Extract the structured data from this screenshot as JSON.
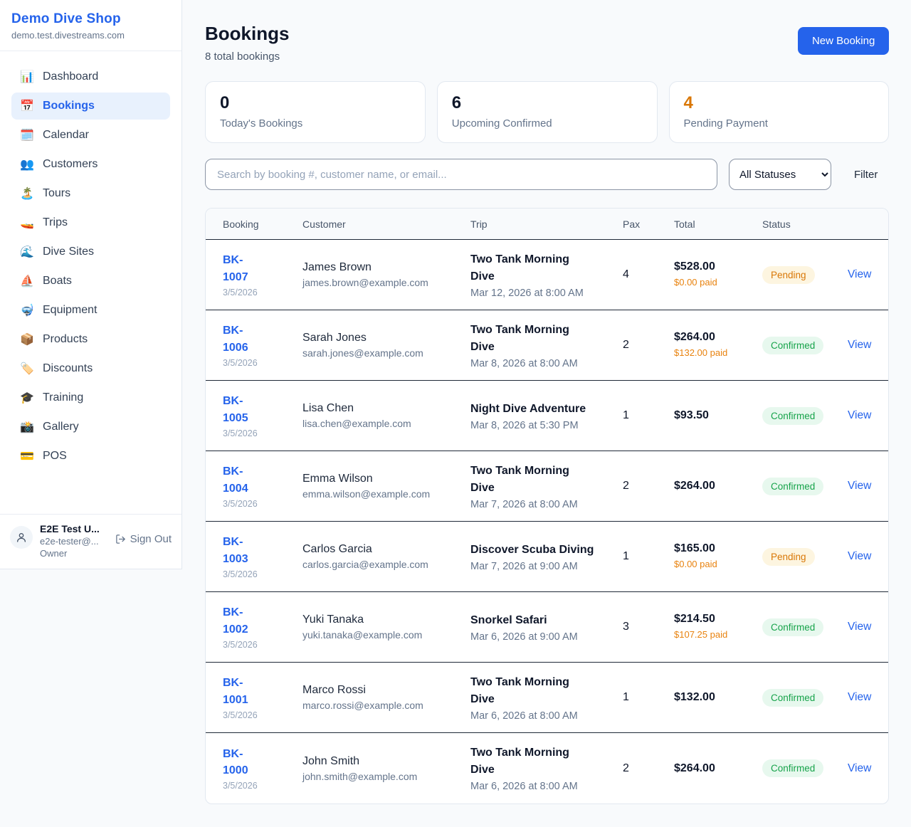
{
  "sidebar": {
    "title": "Demo Dive Shop",
    "domain": "demo.test.divestreams.com",
    "items": [
      {
        "slug": "dashboard",
        "icon": "📊",
        "label": "Dashboard",
        "active": false
      },
      {
        "slug": "bookings",
        "icon": "📅",
        "label": "Bookings",
        "active": true
      },
      {
        "slug": "calendar",
        "icon": "🗓️",
        "label": "Calendar",
        "active": false
      },
      {
        "slug": "customers",
        "icon": "👥",
        "label": "Customers",
        "active": false
      },
      {
        "slug": "tours",
        "icon": "🏝️",
        "label": "Tours",
        "active": false
      },
      {
        "slug": "trips",
        "icon": "🚤",
        "label": "Trips",
        "active": false
      },
      {
        "slug": "dive-sites",
        "icon": "🌊",
        "label": "Dive Sites",
        "active": false
      },
      {
        "slug": "boats",
        "icon": "⛵",
        "label": "Boats",
        "active": false
      },
      {
        "slug": "equipment",
        "icon": "🤿",
        "label": "Equipment",
        "active": false
      },
      {
        "slug": "products",
        "icon": "📦",
        "label": "Products",
        "active": false
      },
      {
        "slug": "discounts",
        "icon": "🏷️",
        "label": "Discounts",
        "active": false
      },
      {
        "slug": "training",
        "icon": "🎓",
        "label": "Training",
        "active": false
      },
      {
        "slug": "gallery",
        "icon": "📸",
        "label": "Gallery",
        "active": false
      },
      {
        "slug": "pos",
        "icon": "💳",
        "label": "POS",
        "active": false
      }
    ],
    "user": {
      "name": "E2E Test U...",
      "email": "e2e-tester@...",
      "role": "Owner",
      "sign_out_label": "Sign Out"
    }
  },
  "header": {
    "title": "Bookings",
    "subtitle": "8 total bookings",
    "new_booking_label": "New Booking"
  },
  "stats": [
    {
      "value": "0",
      "label": "Today's Bookings",
      "value_color": "#0f172a"
    },
    {
      "value": "6",
      "label": "Upcoming Confirmed",
      "value_color": "#0f172a"
    },
    {
      "value": "4",
      "label": "Pending Payment",
      "value_color": "#d97706"
    }
  ],
  "filters": {
    "search_placeholder": "Search by booking #, customer name, or email...",
    "status_selected": "All Statuses",
    "filter_label": "Filter"
  },
  "table": {
    "columns": [
      "Booking",
      "Customer",
      "Trip",
      "Pax",
      "Total",
      "Status",
      ""
    ],
    "view_label": "View",
    "rows": [
      {
        "id": "BK-1007",
        "date": "3/5/2026",
        "customer": "James Brown",
        "email": "james.brown@example.com",
        "trip": "Two Tank Morning Dive",
        "datetime": "Mar 12, 2026 at 8:00 AM",
        "pax": "4",
        "total": "$528.00",
        "paid": "$0.00 paid",
        "status": "Pending"
      },
      {
        "id": "BK-1006",
        "date": "3/5/2026",
        "customer": "Sarah Jones",
        "email": "sarah.jones@example.com",
        "trip": "Two Tank Morning Dive",
        "datetime": "Mar 8, 2026 at 8:00 AM",
        "pax": "2",
        "total": "$264.00",
        "paid": "$132.00 paid",
        "status": "Confirmed"
      },
      {
        "id": "BK-1005",
        "date": "3/5/2026",
        "customer": "Lisa Chen",
        "email": "lisa.chen@example.com",
        "trip": "Night Dive Adventure",
        "datetime": "Mar 8, 2026 at 5:30 PM",
        "pax": "1",
        "total": "$93.50",
        "paid": "",
        "status": "Confirmed"
      },
      {
        "id": "BK-1004",
        "date": "3/5/2026",
        "customer": "Emma Wilson",
        "email": "emma.wilson@example.com",
        "trip": "Two Tank Morning Dive",
        "datetime": "Mar 7, 2026 at 8:00 AM",
        "pax": "2",
        "total": "$264.00",
        "paid": "",
        "status": "Confirmed"
      },
      {
        "id": "BK-1003",
        "date": "3/5/2026",
        "customer": "Carlos Garcia",
        "email": "carlos.garcia@example.com",
        "trip": "Discover Scuba Diving",
        "datetime": "Mar 7, 2026 at 9:00 AM",
        "pax": "1",
        "total": "$165.00",
        "paid": "$0.00 paid",
        "status": "Pending"
      },
      {
        "id": "BK-1002",
        "date": "3/5/2026",
        "customer": "Yuki Tanaka",
        "email": "yuki.tanaka@example.com",
        "trip": "Snorkel Safari",
        "datetime": "Mar 6, 2026 at 9:00 AM",
        "pax": "3",
        "total": "$214.50",
        "paid": "$107.25 paid",
        "status": "Confirmed"
      },
      {
        "id": "BK-1001",
        "date": "3/5/2026",
        "customer": "Marco Rossi",
        "email": "marco.rossi@example.com",
        "trip": "Two Tank Morning Dive",
        "datetime": "Mar 6, 2026 at 8:00 AM",
        "pax": "1",
        "total": "$132.00",
        "paid": "",
        "status": "Confirmed"
      },
      {
        "id": "BK-1000",
        "date": "3/5/2026",
        "customer": "John Smith",
        "email": "john.smith@example.com",
        "trip": "Two Tank Morning Dive",
        "datetime": "Mar 6, 2026 at 8:00 AM",
        "pax": "2",
        "total": "$264.00",
        "paid": "",
        "status": "Confirmed"
      }
    ]
  },
  "colors": {
    "accent_blue": "#2563eb",
    "pending_text": "#d97706",
    "pending_bg": "#fdf5e0",
    "confirmed_text": "#16a34a",
    "confirmed_bg": "#e7f8ee",
    "paid_orange": "#e8820e"
  }
}
